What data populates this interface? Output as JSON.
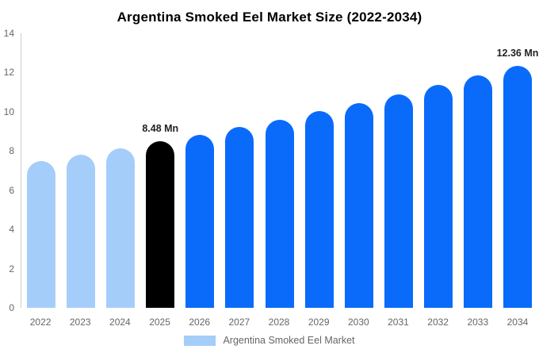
{
  "chart_data": {
    "type": "bar",
    "title": "Argentina Smoked Eel Market Size (2022-2034)",
    "categories": [
      "2022",
      "2023",
      "2024",
      "2025",
      "2026",
      "2027",
      "2028",
      "2029",
      "2030",
      "2031",
      "2032",
      "2033",
      "2034"
    ],
    "values": [
      7.48,
      7.8,
      8.13,
      8.48,
      8.84,
      9.22,
      9.61,
      10.03,
      10.45,
      10.9,
      11.37,
      11.85,
      12.36
    ],
    "bar_colors": [
      "#a4cdfa",
      "#a4cdfa",
      "#a4cdfa",
      "#000000",
      "#0a6bfb",
      "#0a6bfb",
      "#0a6bfb",
      "#0a6bfb",
      "#0a6bfb",
      "#0a6bfb",
      "#0a6bfb",
      "#0a6bfb",
      "#0a6bfb"
    ],
    "value_labels": [
      "",
      "",
      "",
      "8.48 Mn",
      "",
      "",
      "",
      "",
      "",
      "",
      "",
      "",
      "12.36 Mn"
    ],
    "unit": "Mn",
    "xlabel": "",
    "ylabel": "",
    "ylim": [
      0,
      14
    ],
    "yticks": [
      0,
      2,
      4,
      6,
      8,
      10,
      12,
      14
    ],
    "grid": false,
    "legend": {
      "position": "bottom",
      "label": "Argentina Smoked Eel Market",
      "swatch_color": "#a4cdfa"
    },
    "colors": {
      "historical": "#a4cdfa",
      "highlight": "#000000",
      "forecast": "#0a6bfb",
      "axis_line": "#cccccc",
      "tick_text": "#666666",
      "value_label_text": "#222222",
      "title_text": "#000000"
    }
  }
}
